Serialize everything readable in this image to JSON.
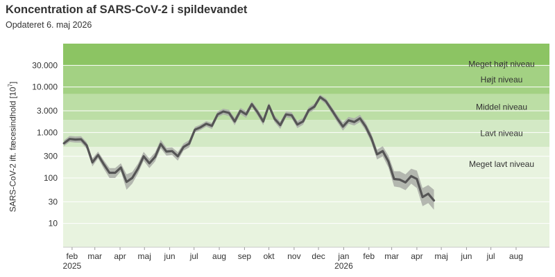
{
  "header": {
    "title": "Koncentration af SARS-CoV-2 i spildevandet",
    "subtitle": "Opdateret 6. maj 2026"
  },
  "chart_data": {
    "type": "line",
    "title": "Koncentration af SARS-CoV-2 i spildevandet",
    "subtitle": "Opdateret 6. maj 2026",
    "ylabel": "SARS-CoV-2 ift. fæcesindhold [10^7]",
    "ylabel_text": "SARS-CoV-2 ift. fæcesindhold [10",
    "ylabel_sup": "7",
    "yscale": "log",
    "ylim": [
      3,
      90000
    ],
    "yticks": [
      10,
      30,
      100,
      300,
      1000,
      3000,
      10000,
      30000
    ],
    "ytick_labels": [
      "10",
      "30",
      "100",
      "300",
      "1.000",
      "3.000",
      "10.000",
      "30.000"
    ],
    "xlim": [
      "2025-01-21",
      "2026-09-11"
    ],
    "xticks": [
      {
        "date": "2025-02-01",
        "label": "feb",
        "year": "2025"
      },
      {
        "date": "2025-03-01",
        "label": "mar",
        "year": ""
      },
      {
        "date": "2025-04-01",
        "label": "apr",
        "year": ""
      },
      {
        "date": "2025-05-01",
        "label": "maj",
        "year": ""
      },
      {
        "date": "2025-06-01",
        "label": "jun",
        "year": ""
      },
      {
        "date": "2025-07-01",
        "label": "jul",
        "year": ""
      },
      {
        "date": "2025-08-01",
        "label": "aug",
        "year": ""
      },
      {
        "date": "2025-09-01",
        "label": "sep",
        "year": ""
      },
      {
        "date": "2025-10-01",
        "label": "okt",
        "year": ""
      },
      {
        "date": "2025-11-01",
        "label": "nov",
        "year": ""
      },
      {
        "date": "2025-12-01",
        "label": "dec",
        "year": ""
      },
      {
        "date": "2026-01-01",
        "label": "jan",
        "year": "2026"
      },
      {
        "date": "2026-02-01",
        "label": "feb",
        "year": ""
      },
      {
        "date": "2026-03-01",
        "label": "mar",
        "year": ""
      },
      {
        "date": "2026-04-01",
        "label": "apr",
        "year": ""
      },
      {
        "date": "2026-05-01",
        "label": "maj",
        "year": ""
      },
      {
        "date": "2026-06-01",
        "label": "jun",
        "year": ""
      },
      {
        "date": "2026-07-01",
        "label": "jul",
        "year": ""
      },
      {
        "date": "2026-08-01",
        "label": "aug",
        "year": ""
      }
    ],
    "bands": [
      {
        "label": "Meget højt niveau",
        "from": 30000,
        "to": 90000,
        "color": "#8cc463"
      },
      {
        "label": "Højt niveau",
        "from": 7000,
        "to": 30000,
        "color": "#a3d183"
      },
      {
        "label": "Middel niveau",
        "from": 1900,
        "to": 7000,
        "color": "#bcdea5"
      },
      {
        "label": "Lavt niveau",
        "from": 480,
        "to": 1900,
        "color": "#d3e9c5"
      },
      {
        "label": "Meget lavt niveau",
        "from": 3,
        "to": 480,
        "color": "#e8f3df"
      }
    ],
    "grid": true,
    "colors": {
      "line": "#555555",
      "ribbon": "#a9aca7",
      "gridline": "#ffffff"
    },
    "series": [
      {
        "x": [
          "2025-01-22",
          "2025-01-29",
          "2025-02-05",
          "2025-02-12",
          "2025-02-19",
          "2025-02-26",
          "2025-03-05",
          "2025-03-12",
          "2025-03-19",
          "2025-03-26",
          "2025-04-02",
          "2025-04-09",
          "2025-04-16",
          "2025-04-23",
          "2025-04-30",
          "2025-05-07",
          "2025-05-14",
          "2025-05-21",
          "2025-05-28",
          "2025-06-04",
          "2025-06-11",
          "2025-06-18",
          "2025-06-25",
          "2025-07-02",
          "2025-07-09",
          "2025-07-16",
          "2025-07-23",
          "2025-07-30",
          "2025-08-06",
          "2025-08-13",
          "2025-08-20",
          "2025-08-27",
          "2025-09-03",
          "2025-09-10",
          "2025-09-17",
          "2025-09-24",
          "2025-10-01",
          "2025-10-08",
          "2025-10-15",
          "2025-10-22",
          "2025-10-29",
          "2025-11-05",
          "2025-11-12",
          "2025-11-19",
          "2025-11-26",
          "2025-12-03",
          "2025-12-10",
          "2025-12-17",
          "2025-12-24",
          "2025-12-31",
          "2026-01-07",
          "2026-01-14",
          "2026-01-21",
          "2026-01-28",
          "2026-02-04",
          "2026-02-11",
          "2026-02-18",
          "2026-02-25",
          "2026-03-04",
          "2026-03-11",
          "2026-03-18",
          "2026-03-25",
          "2026-04-01",
          "2026-04-08",
          "2026-04-15",
          "2026-04-22",
          "2026-04-29"
        ],
        "y": [
          580,
          720,
          700,
          710,
          520,
          220,
          320,
          200,
          130,
          130,
          170,
          82,
          100,
          160,
          300,
          210,
          290,
          560,
          380,
          390,
          300,
          480,
          570,
          1150,
          1300,
          1550,
          1400,
          2500,
          2900,
          2700,
          1750,
          3000,
          2500,
          4200,
          2800,
          1750,
          3900,
          2000,
          1450,
          2500,
          2400,
          1500,
          1750,
          3100,
          3700,
          6000,
          4900,
          3200,
          2050,
          1350,
          1850,
          1700,
          2050,
          1350,
          750,
          330,
          390,
          230,
          95,
          92,
          80,
          110,
          95,
          38,
          45,
          32,
          null
        ],
        "lower": [
          500,
          620,
          600,
          600,
          440,
          180,
          270,
          160,
          100,
          100,
          140,
          55,
          75,
          125,
          240,
          165,
          230,
          450,
          310,
          320,
          240,
          400,
          470,
          1000,
          1130,
          1350,
          1200,
          2150,
          2500,
          2300,
          1450,
          2550,
          2100,
          3650,
          2350,
          1450,
          3350,
          1700,
          1200,
          2150,
          2050,
          1250,
          1480,
          2650,
          3200,
          5300,
          4200,
          2700,
          1700,
          1100,
          1550,
          1420,
          1700,
          1100,
          600,
          255,
          300,
          170,
          65,
          62,
          54,
          75,
          60,
          24,
          28,
          20,
          null
        ],
        "upper": [
          670,
          840,
          820,
          830,
          610,
          270,
          380,
          245,
          165,
          165,
          210,
          120,
          135,
          205,
          375,
          265,
          365,
          690,
          460,
          470,
          370,
          570,
          680,
          1320,
          1500,
          1780,
          1620,
          2900,
          3350,
          3150,
          2100,
          3500,
          2950,
          4850,
          3300,
          2100,
          4500,
          2350,
          1750,
          2900,
          2800,
          1800,
          2080,
          3600,
          4300,
          6800,
          5700,
          3750,
          2450,
          1650,
          2200,
          2050,
          2450,
          1650,
          940,
          420,
          500,
          310,
          140,
          140,
          120,
          160,
          145,
          60,
          70,
          55,
          null
        ]
      }
    ]
  }
}
